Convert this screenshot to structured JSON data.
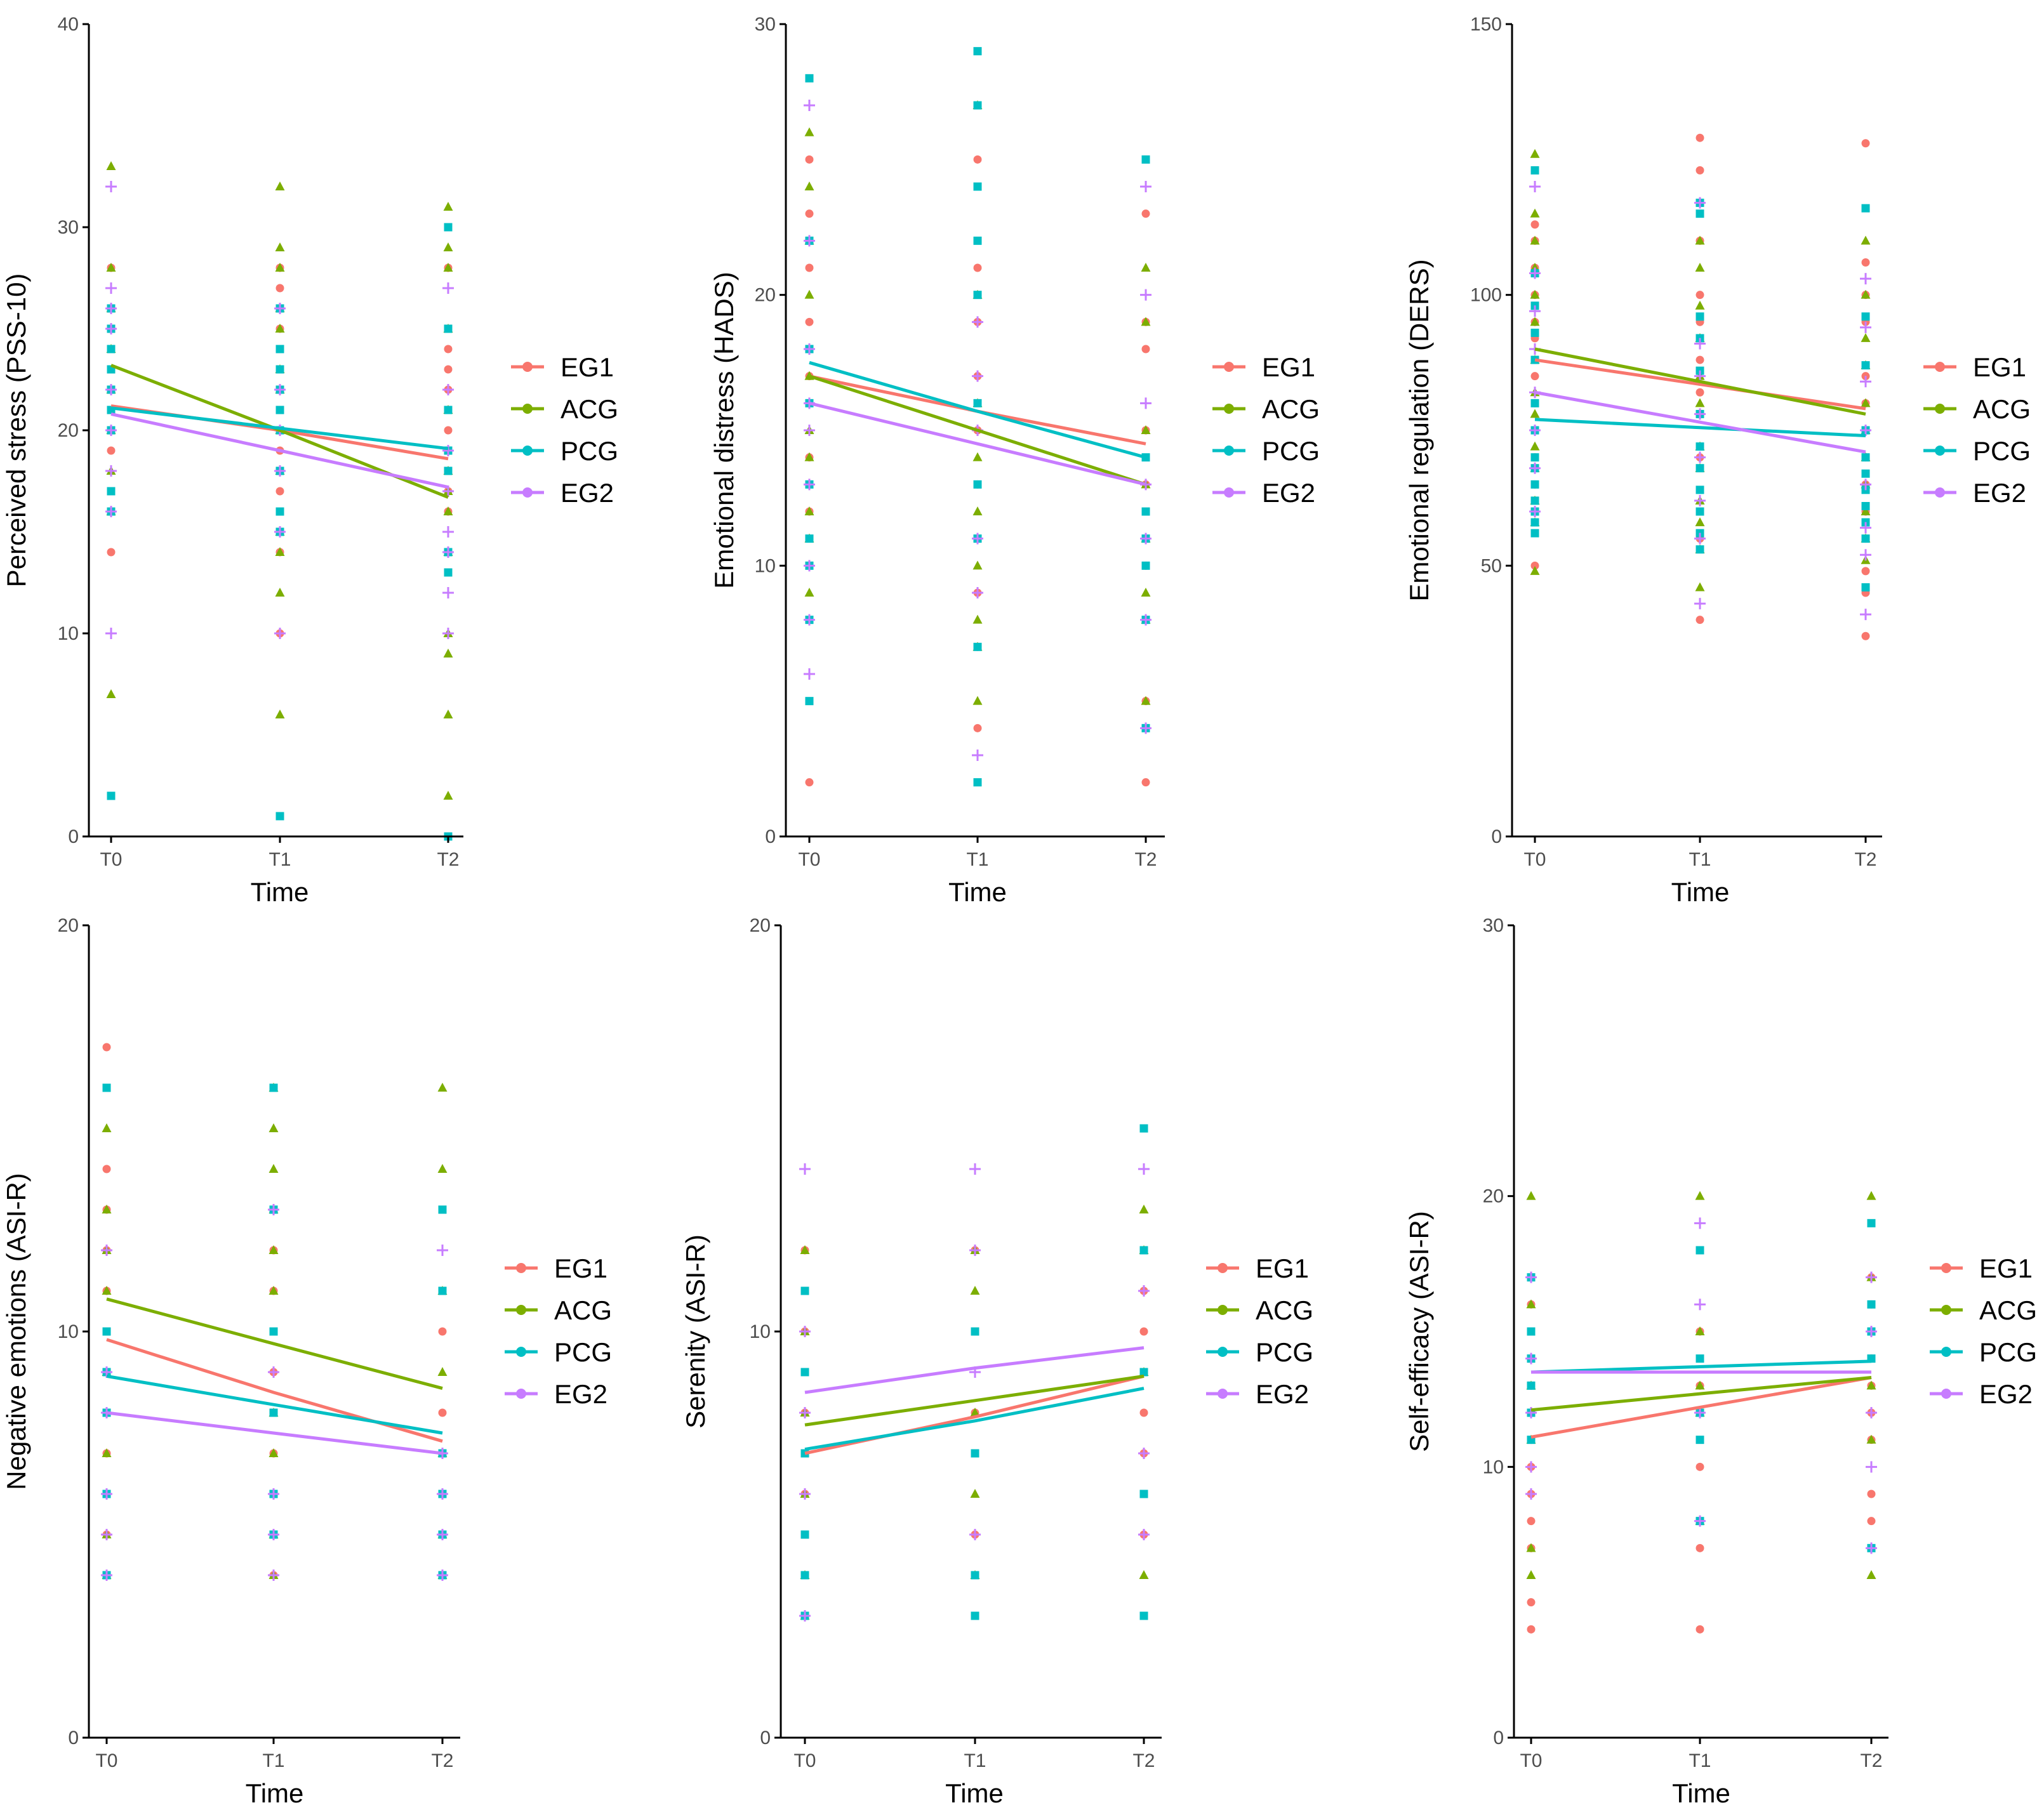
{
  "groups": [
    {
      "name": "EG1",
      "color": "#F8766D",
      "shape": "circle"
    },
    {
      "name": "ACG",
      "color": "#7CAE00",
      "shape": "triangle"
    },
    {
      "name": "PCG",
      "color": "#00BFC4",
      "shape": "square"
    },
    {
      "name": "EG2",
      "color": "#C77CFF",
      "shape": "cross"
    }
  ],
  "chart_data": [
    {
      "type": "scatter",
      "xlabel": "Time",
      "ylabel": "Perceived stress (PSS-10)",
      "categories": [
        "T0",
        "T1",
        "T2"
      ],
      "ylim": [
        0,
        40
      ],
      "yticks": [
        0,
        10,
        20,
        30,
        40
      ],
      "trend_lines": [
        {
          "name": "EG1",
          "values": [
            21.2,
            20.0,
            18.6
          ]
        },
        {
          "name": "ACG",
          "values": [
            23.2,
            20.0,
            16.7
          ]
        },
        {
          "name": "PCG",
          "values": [
            21.1,
            20.1,
            19.1
          ]
        },
        {
          "name": "EG2",
          "values": [
            20.8,
            19.0,
            17.2
          ]
        }
      ],
      "points": [
        {
          "name": "EG1",
          "T0": [
            14,
            19,
            20,
            21,
            22,
            23,
            25,
            26,
            28
          ],
          "T1": [
            10,
            14,
            15,
            16,
            17,
            18,
            19,
            20,
            22,
            25,
            26,
            27,
            28
          ],
          "T2": [
            14,
            16,
            17,
            18,
            19,
            20,
            21,
            22,
            23,
            24,
            25,
            28
          ]
        },
        {
          "name": "ACG",
          "T0": [
            7,
            16,
            18,
            20,
            22,
            24,
            26,
            28,
            33
          ],
          "T1": [
            6,
            12,
            14,
            15,
            18,
            20,
            22,
            23,
            25,
            26,
            28,
            29,
            32
          ],
          "T2": [
            2,
            6,
            9,
            10,
            14,
            16,
            17,
            18,
            21,
            25,
            28,
            29,
            31
          ]
        },
        {
          "name": "PCG",
          "T0": [
            2,
            16,
            17,
            20,
            21,
            22,
            23,
            24,
            25,
            26
          ],
          "T1": [
            1,
            15,
            16,
            18,
            20,
            21,
            22,
            23,
            24,
            26
          ],
          "T2": [
            0,
            13,
            14,
            18,
            19,
            21,
            25,
            30
          ]
        },
        {
          "name": "EG2",
          "T0": [
            10,
            16,
            18,
            20,
            22,
            25,
            26,
            27,
            32
          ],
          "T1": [
            10,
            15,
            18,
            20,
            22,
            26
          ],
          "T2": [
            10,
            12,
            14,
            15,
            17,
            19,
            22,
            27
          ]
        }
      ]
    },
    {
      "type": "scatter",
      "xlabel": "Time",
      "ylabel": "Emotional distress (HADS)",
      "categories": [
        "T0",
        "T1",
        "T2"
      ],
      "ylim": [
        0,
        30
      ],
      "yticks": [
        0,
        10,
        20,
        30
      ],
      "trend_lines": [
        {
          "name": "EG1",
          "values": [
            17.0,
            15.7,
            14.5
          ]
        },
        {
          "name": "ACG",
          "values": [
            17.0,
            15.0,
            13.0
          ]
        },
        {
          "name": "PCG",
          "values": [
            17.5,
            15.7,
            14.0
          ]
        },
        {
          "name": "EG2",
          "values": [
            16.0,
            14.5,
            13.0
          ]
        }
      ],
      "points": [
        {
          "name": "EG1",
          "T0": [
            2,
            8,
            10,
            12,
            14,
            17,
            19,
            21,
            23,
            25
          ],
          "T1": [
            4,
            7,
            9,
            11,
            13,
            15,
            17,
            19,
            21,
            25
          ],
          "T2": [
            2,
            4,
            5,
            8,
            10,
            13,
            15,
            18,
            19,
            23
          ]
        },
        {
          "name": "ACG",
          "T0": [
            9,
            11,
            12,
            14,
            15,
            17,
            20,
            22,
            24,
            26
          ],
          "T1": [
            5,
            7,
            8,
            10,
            12,
            14,
            16,
            20,
            27
          ],
          "T2": [
            5,
            8,
            9,
            11,
            13,
            15,
            19,
            21
          ]
        },
        {
          "name": "PCG",
          "T0": [
            5,
            8,
            10,
            11,
            13,
            16,
            18,
            22,
            28
          ],
          "T1": [
            2,
            7,
            11,
            13,
            16,
            20,
            22,
            24,
            27,
            29
          ],
          "T2": [
            4,
            8,
            10,
            11,
            12,
            14,
            25
          ]
        },
        {
          "name": "EG2",
          "T0": [
            6,
            8,
            10,
            13,
            15,
            16,
            18,
            22,
            27
          ],
          "T1": [
            3,
            9,
            11,
            15,
            17,
            19
          ],
          "T2": [
            4,
            8,
            11,
            13,
            16,
            20,
            24
          ]
        }
      ]
    },
    {
      "type": "scatter",
      "xlabel": "Time",
      "ylabel": "Emotional regulation (DERS)",
      "categories": [
        "T0",
        "T1",
        "T2"
      ],
      "ylim": [
        0,
        150
      ],
      "yticks": [
        0,
        50,
        100,
        150
      ],
      "trend_lines": [
        {
          "name": "EG1",
          "values": [
            88.0,
            83.5,
            79.0
          ]
        },
        {
          "name": "ACG",
          "values": [
            90.0,
            84.0,
            78.0
          ]
        },
        {
          "name": "PCG",
          "values": [
            77.0,
            75.5,
            74.0
          ]
        },
        {
          "name": "EG2",
          "values": [
            82.0,
            76.5,
            71.0
          ]
        }
      ],
      "points": [
        {
          "name": "EG1",
          "T0": [
            50,
            60,
            65,
            70,
            75,
            80,
            85,
            88,
            92,
            95,
            100,
            105,
            110,
            113
          ],
          "T1": [
            40,
            55,
            60,
            70,
            78,
            82,
            88,
            95,
            100,
            110,
            117,
            123,
            129
          ],
          "T2": [
            37,
            45,
            49,
            55,
            60,
            65,
            70,
            75,
            80,
            85,
            95,
            100,
            106,
            128
          ]
        },
        {
          "name": "ACG",
          "T0": [
            49,
            58,
            62,
            68,
            72,
            78,
            82,
            88,
            95,
            100,
            105,
            110,
            115,
            126
          ],
          "T1": [
            46,
            53,
            58,
            62,
            68,
            72,
            80,
            85,
            92,
            98,
            105,
            110
          ],
          "T2": [
            51,
            55,
            60,
            65,
            70,
            75,
            80,
            87,
            92,
            100,
            110
          ]
        },
        {
          "name": "PCG",
          "T0": [
            56,
            58,
            60,
            62,
            65,
            68,
            70,
            75,
            80,
            88,
            93,
            98,
            104,
            123
          ],
          "T1": [
            53,
            56,
            60,
            64,
            68,
            72,
            78,
            86,
            92,
            96,
            115,
            117
          ],
          "T2": [
            46,
            55,
            58,
            61,
            64,
            67,
            70,
            75,
            87,
            96,
            116
          ]
        },
        {
          "name": "EG2",
          "T0": [
            60,
            68,
            75,
            82,
            90,
            97,
            104,
            120
          ],
          "T1": [
            43,
            55,
            62,
            70,
            78,
            85,
            91,
            117
          ],
          "T2": [
            41,
            52,
            57,
            65,
            75,
            84,
            94,
            103
          ]
        }
      ]
    },
    {
      "type": "scatter",
      "xlabel": "Time",
      "ylabel": "Negative emotions (ASI-R)",
      "categories": [
        "T0",
        "T1",
        "T2"
      ],
      "ylim": [
        0,
        20
      ],
      "yticks": [
        0,
        10,
        20
      ],
      "trend_lines": [
        {
          "name": "EG1",
          "values": [
            9.8,
            8.5,
            7.3
          ]
        },
        {
          "name": "ACG",
          "values": [
            10.8,
            9.7,
            8.6
          ]
        },
        {
          "name": "PCG",
          "values": [
            8.9,
            8.2,
            7.5
          ]
        },
        {
          "name": "EG2",
          "values": [
            8.0,
            7.5,
            7.0
          ]
        }
      ],
      "points": [
        {
          "name": "EG1",
          "T0": [
            4,
            5,
            7,
            9,
            10,
            11,
            12,
            13,
            14,
            17
          ],
          "T1": [
            4,
            6,
            7,
            9,
            11,
            12,
            13
          ],
          "T2": [
            4,
            6,
            7,
            8,
            10,
            11,
            13
          ]
        },
        {
          "name": "ACG",
          "T0": [
            4,
            5,
            7,
            9,
            11,
            12,
            13,
            15
          ],
          "T1": [
            4,
            5,
            7,
            8,
            11,
            12,
            13,
            14,
            15,
            16
          ],
          "T2": [
            4,
            5,
            7,
            9,
            11,
            14,
            16
          ]
        },
        {
          "name": "PCG",
          "T0": [
            4,
            6,
            8,
            9,
            10,
            16
          ],
          "T1": [
            5,
            6,
            8,
            10,
            13,
            16
          ],
          "T2": [
            4,
            5,
            6,
            7,
            11,
            13
          ]
        },
        {
          "name": "EG2",
          "T0": [
            4,
            5,
            6,
            8,
            9,
            12
          ],
          "T1": [
            4,
            5,
            6,
            9,
            13
          ],
          "T2": [
            4,
            5,
            6,
            7,
            12
          ]
        }
      ]
    },
    {
      "type": "scatter",
      "xlabel": "Time",
      "ylabel": "Serenity (ASI-R)",
      "categories": [
        "T0",
        "T1",
        "T2"
      ],
      "ylim": [
        0,
        20
      ],
      "yticks": [
        0,
        10,
        20
      ],
      "trend_lines": [
        {
          "name": "EG1",
          "values": [
            7.0,
            7.9,
            8.9
          ]
        },
        {
          "name": "ACG",
          "values": [
            7.7,
            8.3,
            8.9
          ]
        },
        {
          "name": "PCG",
          "values": [
            7.1,
            7.8,
            8.6
          ]
        },
        {
          "name": "EG2",
          "values": [
            8.5,
            9.1,
            9.6
          ]
        }
      ],
      "points": [
        {
          "name": "EG1",
          "T0": [
            3,
            6,
            7,
            8,
            10,
            12
          ],
          "T1": [
            5,
            7,
            8,
            10,
            12
          ],
          "T2": [
            5,
            7,
            8,
            10,
            11
          ]
        },
        {
          "name": "ACG",
          "T0": [
            3,
            4,
            6,
            8,
            10,
            12
          ],
          "T1": [
            4,
            6,
            8,
            11,
            12
          ],
          "T2": [
            4,
            9,
            12,
            13
          ]
        },
        {
          "name": "PCG",
          "T0": [
            3,
            4,
            5,
            7,
            9,
            11
          ],
          "T1": [
            3,
            4,
            7,
            10
          ],
          "T2": [
            3,
            6,
            9,
            12,
            15
          ]
        },
        {
          "name": "EG2",
          "T0": [
            3,
            6,
            8,
            10,
            14
          ],
          "T1": [
            5,
            9,
            12,
            14
          ],
          "T2": [
            5,
            7,
            11,
            14
          ]
        }
      ]
    },
    {
      "type": "scatter",
      "xlabel": "Time",
      "ylabel": "Self-efficacy (ASI-R)",
      "categories": [
        "T0",
        "T1",
        "T2"
      ],
      "ylim": [
        0,
        30
      ],
      "yticks": [
        0,
        10,
        20,
        30
      ],
      "trend_lines": [
        {
          "name": "EG1",
          "values": [
            11.1,
            12.2,
            13.3
          ]
        },
        {
          "name": "ACG",
          "values": [
            12.1,
            12.7,
            13.3
          ]
        },
        {
          "name": "PCG",
          "values": [
            13.5,
            13.7,
            13.9
          ]
        },
        {
          "name": "EG2",
          "values": [
            13.5,
            13.5,
            13.5
          ]
        }
      ],
      "points": [
        {
          "name": "EG1",
          "T0": [
            4,
            5,
            7,
            8,
            9,
            10,
            11,
            12,
            13,
            16
          ],
          "T1": [
            4,
            7,
            8,
            10,
            12,
            13,
            15
          ],
          "T2": [
            7,
            8,
            9,
            11,
            12,
            13,
            14,
            15,
            16,
            17
          ]
        },
        {
          "name": "ACG",
          "T0": [
            6,
            7,
            11,
            13,
            16,
            20
          ],
          "T1": [
            8,
            12,
            13,
            15,
            20
          ],
          "T2": [
            6,
            11,
            13,
            17,
            20
          ]
        },
        {
          "name": "PCG",
          "T0": [
            11,
            12,
            13,
            14,
            15,
            17
          ],
          "T1": [
            8,
            11,
            12,
            14,
            18
          ],
          "T2": [
            7,
            14,
            15,
            16,
            19
          ]
        },
        {
          "name": "EG2",
          "T0": [
            9,
            10,
            12,
            14,
            17
          ],
          "T1": [
            8,
            12,
            16,
            19
          ],
          "T2": [
            7,
            10,
            12,
            15,
            17
          ]
        }
      ]
    }
  ]
}
